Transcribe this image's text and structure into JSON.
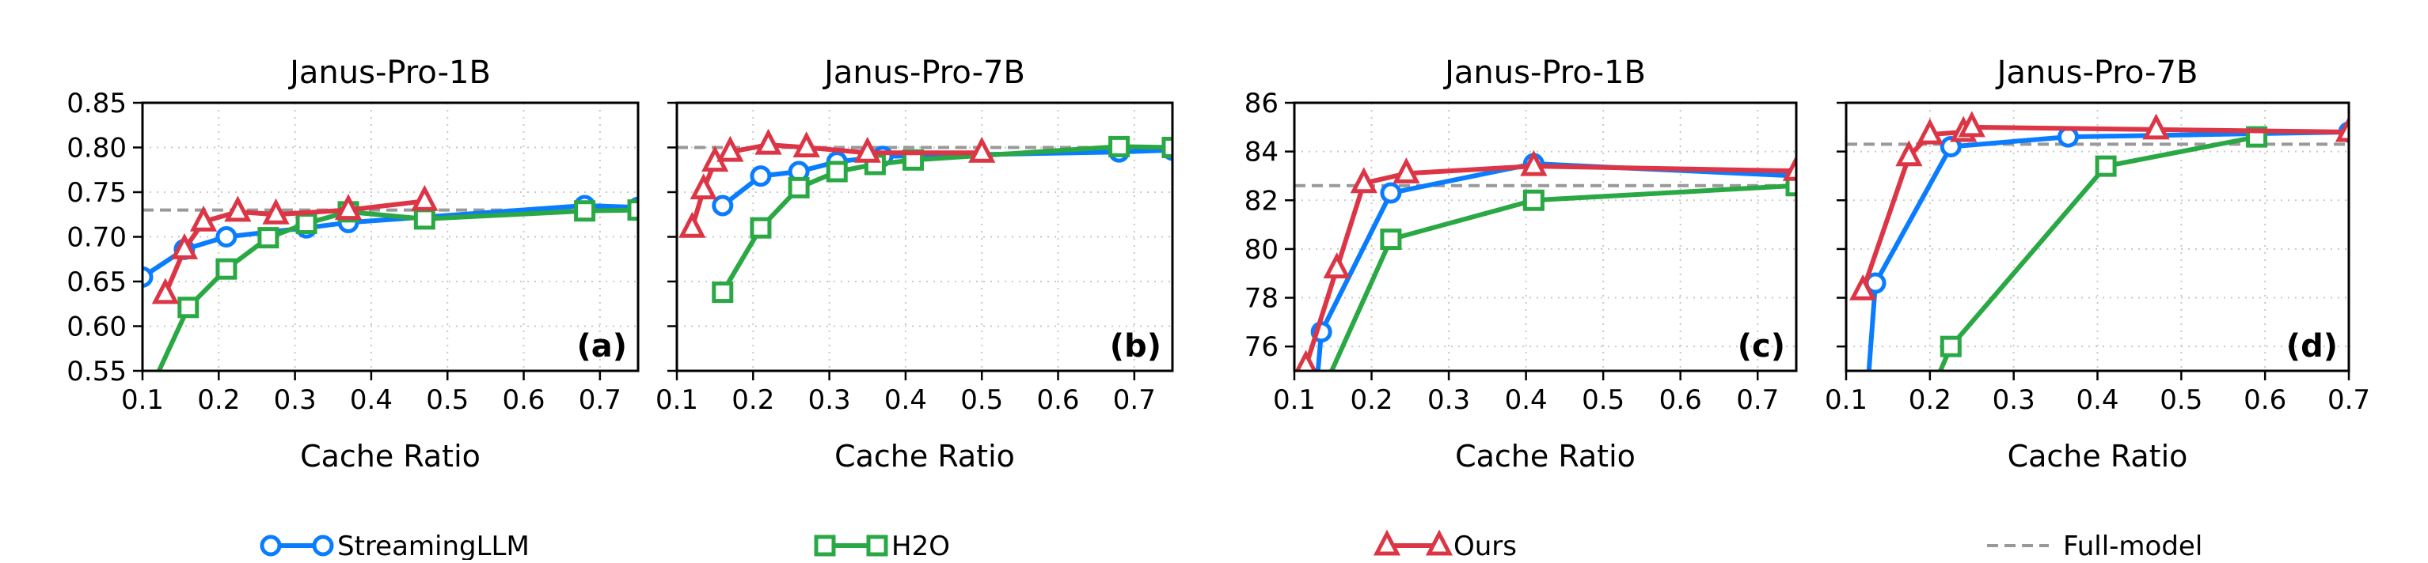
{
  "legend": [
    {
      "name": "StreamingLLM",
      "color": "#0a7cff",
      "marker": "circle"
    },
    {
      "name": "H2O",
      "color": "#29a844",
      "marker": "square"
    },
    {
      "name": "Ours",
      "color": "#dc3545",
      "marker": "triangle"
    },
    {
      "name": "Full-model",
      "color": "#999999",
      "marker": "dashed-line"
    }
  ],
  "chart_data": [
    {
      "type": "line",
      "panel_label": "(a)",
      "title": "Janus-Pro-1B",
      "xlabel": "Cache Ratio",
      "ylabel": "",
      "xlim": [
        0.1,
        0.75
      ],
      "ylim": [
        0.55,
        0.85
      ],
      "xticks": [
        "0.1",
        "0.2",
        "0.3",
        "0.4",
        "0.5",
        "0.6",
        "0.7"
      ],
      "yticks": [
        "0.55",
        "0.60",
        "0.65",
        "0.70",
        "0.75",
        "0.80",
        "0.85"
      ],
      "show_ytick_labels": true,
      "grid": true,
      "full_model": 0.73,
      "series": [
        {
          "name": "StreamingLLM",
          "x": [
            0.1,
            0.155,
            0.21,
            0.315,
            0.37,
            0.68,
            0.75
          ],
          "y": [
            0.655,
            0.686,
            0.7,
            0.71,
            0.716,
            0.735,
            0.733
          ]
        },
        {
          "name": "H2O",
          "x": [
            0.1,
            0.16,
            0.21,
            0.265,
            0.315,
            0.37,
            0.47,
            0.68,
            0.75
          ],
          "y": [
            0.51,
            0.621,
            0.664,
            0.699,
            0.715,
            0.728,
            0.72,
            0.729,
            0.73
          ]
        },
        {
          "name": "Ours",
          "x": [
            0.13,
            0.155,
            0.18,
            0.225,
            0.275,
            0.37,
            0.47
          ],
          "y": [
            0.636,
            0.686,
            0.717,
            0.728,
            0.725,
            0.73,
            0.74
          ]
        }
      ]
    },
    {
      "type": "line",
      "panel_label": "(b)",
      "title": "Janus-Pro-7B",
      "xlabel": "Cache Ratio",
      "ylabel": "",
      "xlim": [
        0.1,
        0.75
      ],
      "ylim": [
        0.55,
        0.85
      ],
      "xticks": [
        "0.1",
        "0.2",
        "0.3",
        "0.4",
        "0.5",
        "0.6",
        "0.7"
      ],
      "yticks": [
        "0.55",
        "0.60",
        "0.65",
        "0.70",
        "0.75",
        "0.80",
        "0.85"
      ],
      "show_ytick_labels": false,
      "grid": true,
      "full_model": 0.8,
      "series": [
        {
          "name": "StreamingLLM",
          "x": [
            0.16,
            0.21,
            0.26,
            0.31,
            0.37,
            0.68,
            0.75
          ],
          "y": [
            0.735,
            0.768,
            0.773,
            0.784,
            0.79,
            0.795,
            0.797
          ]
        },
        {
          "name": "H2O",
          "x": [
            0.16,
            0.21,
            0.26,
            0.31,
            0.36,
            0.41,
            0.68,
            0.75
          ],
          "y": [
            0.638,
            0.71,
            0.755,
            0.773,
            0.781,
            0.786,
            0.801,
            0.8
          ]
        },
        {
          "name": "Ours",
          "x": [
            0.12,
            0.135,
            0.15,
            0.17,
            0.22,
            0.27,
            0.35,
            0.5
          ],
          "y": [
            0.71,
            0.753,
            0.784,
            0.795,
            0.803,
            0.8,
            0.794,
            0.794
          ]
        }
      ]
    },
    {
      "type": "line",
      "panel_label": "(c)",
      "title": "Janus-Pro-1B",
      "xlabel": "Cache Ratio",
      "ylabel": "",
      "xlim": [
        0.1,
        0.75
      ],
      "ylim": [
        75,
        86
      ],
      "xticks": [
        "0.1",
        "0.2",
        "0.3",
        "0.4",
        "0.5",
        "0.6",
        "0.7"
      ],
      "yticks": [
        "76",
        "78",
        "80",
        "82",
        "84",
        "86"
      ],
      "show_ytick_labels": true,
      "grid": true,
      "full_model": 82.6,
      "series": [
        {
          "name": "StreamingLLM",
          "x": [
            0.125,
            0.135,
            0.225,
            0.41,
            0.75
          ],
          "y": [
            73.0,
            76.6,
            82.3,
            83.5,
            83.0
          ]
        },
        {
          "name": "H2O",
          "x": [
            0.12,
            0.225,
            0.41,
            0.75
          ],
          "y": [
            73.0,
            80.4,
            82.0,
            82.6
          ]
        },
        {
          "name": "Ours",
          "x": [
            0.115,
            0.155,
            0.19,
            0.245,
            0.41,
            0.75
          ],
          "y": [
            75.2,
            79.2,
            82.7,
            83.1,
            83.4,
            83.2
          ]
        }
      ]
    },
    {
      "type": "line",
      "panel_label": "(d)",
      "title": "Janus-Pro-7B",
      "xlabel": "Cache Ratio",
      "ylabel": "",
      "xlim": [
        0.1,
        0.7
      ],
      "ylim": [
        75,
        86
      ],
      "xticks": [
        "0.1",
        "0.2",
        "0.3",
        "0.4",
        "0.5",
        "0.6",
        "0.7"
      ],
      "yticks": [
        "76",
        "78",
        "80",
        "82",
        "84",
        "86"
      ],
      "show_ytick_labels": false,
      "grid": true,
      "full_model": 84.3,
      "series": [
        {
          "name": "StreamingLLM",
          "x": [
            0.125,
            0.135,
            0.225,
            0.365,
            0.7
          ],
          "y": [
            74.0,
            78.6,
            84.2,
            84.6,
            84.8
          ]
        },
        {
          "name": "H2O",
          "x": [
            0.2,
            0.225,
            0.41,
            0.59
          ],
          "y": [
            74.0,
            76.0,
            83.4,
            84.6
          ]
        },
        {
          "name": "Ours",
          "x": [
            0.12,
            0.175,
            0.2,
            0.24,
            0.25,
            0.47,
            0.7
          ],
          "y": [
            78.3,
            83.8,
            84.7,
            84.8,
            85.0,
            84.9,
            84.8
          ]
        }
      ]
    }
  ]
}
